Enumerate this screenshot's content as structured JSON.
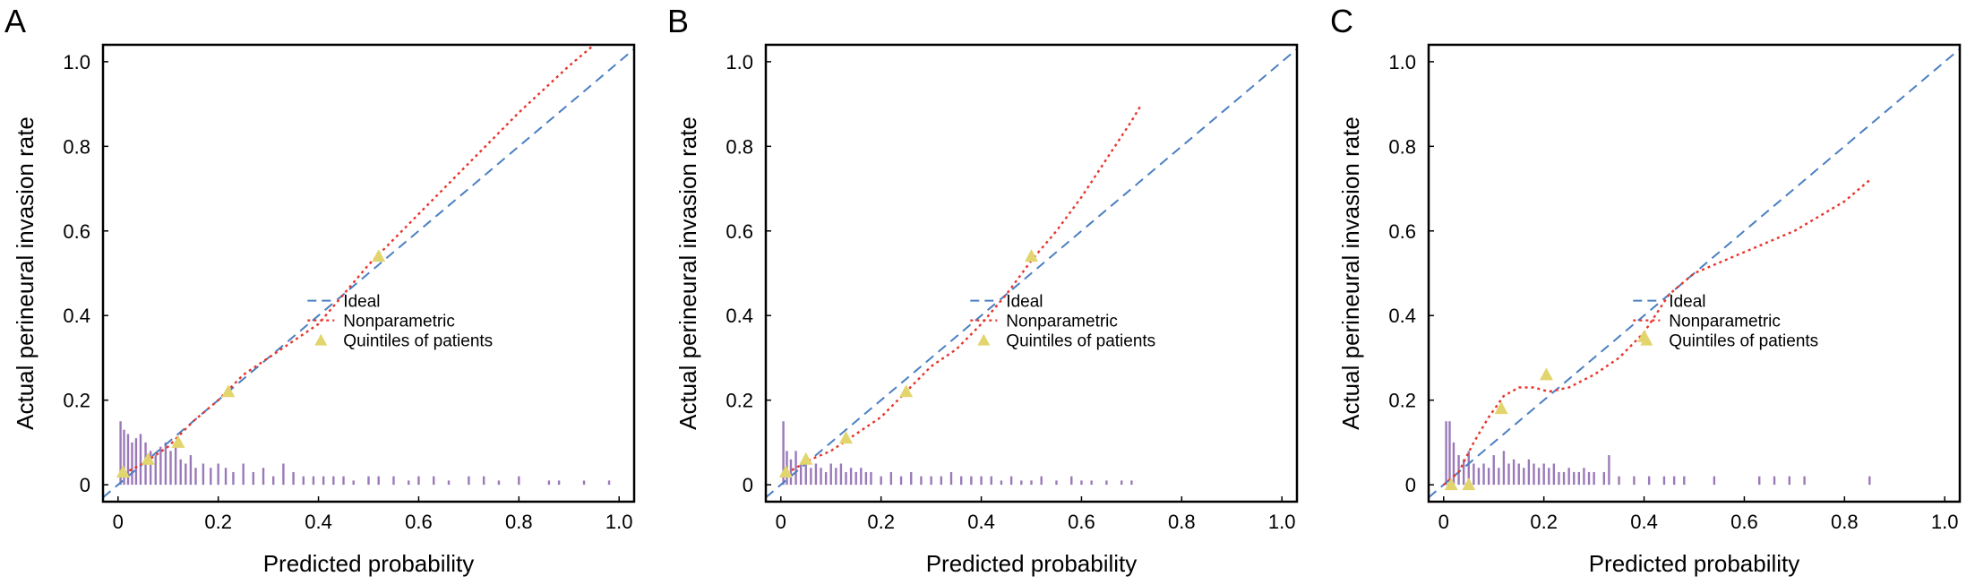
{
  "chart_data": [
    {
      "panel": "A",
      "type": "line",
      "xlabel": "Predicted probability",
      "ylabel": "Actual perineural invasion rate",
      "xlim": [
        -0.03,
        1.03
      ],
      "ylim": [
        -0.04,
        1.04
      ],
      "xticks": [
        "0",
        "0.2",
        "0.4",
        "0.6",
        "0.8",
        "1.0"
      ],
      "yticks": [
        "0",
        "0.2",
        "0.4",
        "0.6",
        "0.8",
        "1.0"
      ],
      "legend": [
        "Ideal",
        "Nonparametric",
        "Quintiles of patients"
      ],
      "legend_position": "lower-right",
      "ideal": {
        "x": [
          -0.03,
          1.03
        ],
        "y": [
          -0.03,
          1.03
        ],
        "color": "#4a7fc1"
      },
      "nonparametric": {
        "color": "#e8342b",
        "x": [
          0.0,
          0.05,
          0.1,
          0.15,
          0.2,
          0.25,
          0.3,
          0.35,
          0.4,
          0.45,
          0.5,
          0.55,
          0.6,
          0.7,
          0.8,
          0.9,
          0.95
        ],
        "y": [
          0.02,
          0.05,
          0.09,
          0.15,
          0.2,
          0.26,
          0.3,
          0.34,
          0.38,
          0.45,
          0.52,
          0.58,
          0.64,
          0.76,
          0.88,
          0.99,
          1.04
        ]
      },
      "quintiles": {
        "color": "#e2d56e",
        "x": [
          0.01,
          0.06,
          0.12,
          0.22,
          0.52
        ],
        "y": [
          0.03,
          0.06,
          0.1,
          0.22,
          0.54
        ]
      },
      "spikes": {
        "color": "#9a79b9",
        "x": [
          0.005,
          0.012,
          0.02,
          0.028,
          0.036,
          0.045,
          0.055,
          0.065,
          0.075,
          0.085,
          0.095,
          0.105,
          0.115,
          0.125,
          0.135,
          0.145,
          0.155,
          0.17,
          0.185,
          0.2,
          0.215,
          0.23,
          0.25,
          0.27,
          0.29,
          0.31,
          0.33,
          0.35,
          0.37,
          0.39,
          0.41,
          0.43,
          0.45,
          0.47,
          0.5,
          0.52,
          0.55,
          0.58,
          0.6,
          0.63,
          0.66,
          0.7,
          0.73,
          0.76,
          0.8,
          0.86,
          0.88,
          0.93,
          0.98
        ],
        "height": [
          0.15,
          0.13,
          0.12,
          0.1,
          0.11,
          0.12,
          0.1,
          0.08,
          0.07,
          0.09,
          0.1,
          0.08,
          0.09,
          0.06,
          0.05,
          0.07,
          0.04,
          0.05,
          0.04,
          0.05,
          0.04,
          0.03,
          0.05,
          0.03,
          0.04,
          0.02,
          0.05,
          0.03,
          0.02,
          0.02,
          0.02,
          0.02,
          0.02,
          0.01,
          0.02,
          0.02,
          0.02,
          0.01,
          0.02,
          0.02,
          0.01,
          0.02,
          0.02,
          0.01,
          0.02,
          0.01,
          0.01,
          0.01,
          0.01
        ]
      }
    },
    {
      "panel": "B",
      "type": "line",
      "xlabel": "Predicted probability",
      "ylabel": "Actual perineural invasion rate",
      "xlim": [
        -0.03,
        1.03
      ],
      "ylim": [
        -0.04,
        1.04
      ],
      "xticks": [
        "0",
        "0.2",
        "0.4",
        "0.6",
        "0.8",
        "1.0"
      ],
      "yticks": [
        "0",
        "0.2",
        "0.4",
        "0.6",
        "0.8",
        "1.0"
      ],
      "legend": [
        "Ideal",
        "Nonparametric",
        "Quintiles of patients"
      ],
      "legend_position": "lower-right",
      "ideal": {
        "x": [
          -0.03,
          1.03
        ],
        "y": [
          -0.03,
          1.03
        ],
        "color": "#4a7fc1"
      },
      "nonparametric": {
        "color": "#e8342b",
        "x": [
          0.0,
          0.03,
          0.06,
          0.1,
          0.15,
          0.2,
          0.25,
          0.3,
          0.35,
          0.4,
          0.45,
          0.5,
          0.55,
          0.6,
          0.65,
          0.7,
          0.72
        ],
        "y": [
          0.02,
          0.04,
          0.06,
          0.08,
          0.12,
          0.16,
          0.22,
          0.28,
          0.32,
          0.38,
          0.45,
          0.53,
          0.6,
          0.68,
          0.77,
          0.86,
          0.9
        ]
      },
      "quintiles": {
        "color": "#e2d56e",
        "x": [
          0.01,
          0.05,
          0.13,
          0.25,
          0.5
        ],
        "y": [
          0.03,
          0.06,
          0.11,
          0.22,
          0.54
        ]
      },
      "spikes": {
        "color": "#9a79b9",
        "x": [
          0.005,
          0.012,
          0.02,
          0.03,
          0.04,
          0.05,
          0.06,
          0.07,
          0.08,
          0.09,
          0.1,
          0.11,
          0.12,
          0.13,
          0.14,
          0.15,
          0.16,
          0.17,
          0.18,
          0.2,
          0.22,
          0.24,
          0.26,
          0.28,
          0.3,
          0.32,
          0.34,
          0.36,
          0.38,
          0.4,
          0.42,
          0.44,
          0.46,
          0.48,
          0.5,
          0.52,
          0.55,
          0.58,
          0.6,
          0.62,
          0.65,
          0.68,
          0.7
        ],
        "height": [
          0.15,
          0.08,
          0.06,
          0.08,
          0.05,
          0.06,
          0.04,
          0.05,
          0.04,
          0.03,
          0.05,
          0.04,
          0.05,
          0.03,
          0.04,
          0.03,
          0.04,
          0.03,
          0.03,
          0.02,
          0.03,
          0.02,
          0.03,
          0.02,
          0.02,
          0.02,
          0.03,
          0.02,
          0.02,
          0.02,
          0.02,
          0.01,
          0.02,
          0.01,
          0.01,
          0.02,
          0.01,
          0.02,
          0.01,
          0.01,
          0.01,
          0.01,
          0.01
        ]
      }
    },
    {
      "panel": "C",
      "type": "line",
      "xlabel": "Predicted probability",
      "ylabel": "Actual perineural invasion rate",
      "xlim": [
        -0.03,
        1.03
      ],
      "ylim": [
        -0.04,
        1.04
      ],
      "xticks": [
        "0",
        "0.2",
        "0.4",
        "0.6",
        "0.8",
        "1.0"
      ],
      "yticks": [
        "0",
        "0.2",
        "0.4",
        "0.6",
        "0.8",
        "1.0"
      ],
      "legend": [
        "Ideal",
        "Nonparametric",
        "Quintiles of patients"
      ],
      "legend_position": "lower-right",
      "ideal": {
        "x": [
          -0.03,
          1.03
        ],
        "y": [
          -0.03,
          1.03
        ],
        "color": "#4a7fc1"
      },
      "nonparametric": {
        "color": "#e8342b",
        "x": [
          0.0,
          0.03,
          0.06,
          0.09,
          0.12,
          0.15,
          0.18,
          0.21,
          0.25,
          0.3,
          0.35,
          0.4,
          0.45,
          0.5,
          0.6,
          0.7,
          0.8,
          0.85
        ],
        "y": [
          0.0,
          0.03,
          0.1,
          0.16,
          0.21,
          0.23,
          0.23,
          0.22,
          0.23,
          0.26,
          0.3,
          0.36,
          0.45,
          0.5,
          0.55,
          0.6,
          0.67,
          0.72
        ]
      },
      "quintiles": {
        "color": "#e2d56e",
        "x": [
          0.015,
          0.05,
          0.115,
          0.205,
          0.4
        ],
        "y": [
          0.0,
          0.0,
          0.18,
          0.26,
          0.35
        ]
      },
      "spikes": {
        "color": "#9a79b9",
        "x": [
          0.005,
          0.012,
          0.02,
          0.03,
          0.04,
          0.05,
          0.06,
          0.07,
          0.08,
          0.09,
          0.1,
          0.11,
          0.12,
          0.13,
          0.14,
          0.15,
          0.16,
          0.17,
          0.18,
          0.19,
          0.2,
          0.21,
          0.22,
          0.23,
          0.24,
          0.25,
          0.26,
          0.27,
          0.28,
          0.29,
          0.3,
          0.32,
          0.33,
          0.35,
          0.38,
          0.41,
          0.44,
          0.46,
          0.48,
          0.54,
          0.63,
          0.66,
          0.69,
          0.72,
          0.85
        ],
        "height": [
          0.15,
          0.15,
          0.1,
          0.07,
          0.06,
          0.08,
          0.05,
          0.04,
          0.05,
          0.04,
          0.07,
          0.04,
          0.08,
          0.05,
          0.06,
          0.05,
          0.04,
          0.06,
          0.05,
          0.04,
          0.05,
          0.04,
          0.05,
          0.03,
          0.03,
          0.04,
          0.03,
          0.03,
          0.04,
          0.03,
          0.03,
          0.03,
          0.07,
          0.02,
          0.02,
          0.02,
          0.02,
          0.02,
          0.02,
          0.02,
          0.02,
          0.02,
          0.02,
          0.02,
          0.02
        ]
      }
    }
  ]
}
